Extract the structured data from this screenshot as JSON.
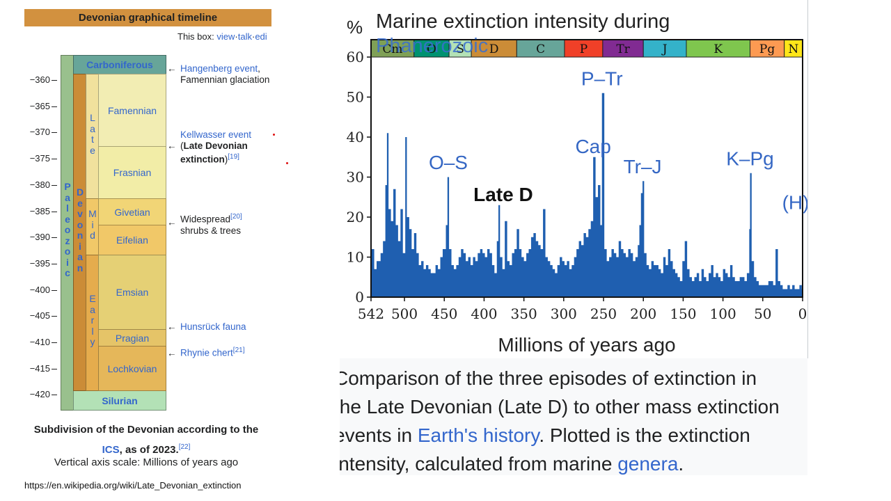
{
  "timeline": {
    "header": "Devonian graphical timeline",
    "box_prefix": "This box:",
    "box_links": [
      "view",
      "talk",
      "edi"
    ],
    "ticks": [
      "−360",
      "−365",
      "−370",
      "−375",
      "−380",
      "−385",
      "−390",
      "−395",
      "−400",
      "−405",
      "−410",
      "−415",
      "−420"
    ],
    "top_period": "Carboniferous",
    "bottom_period": "Silurian",
    "era_letters": [
      "P",
      "a",
      "l",
      "e",
      "o",
      "z",
      "o",
      "i",
      "c"
    ],
    "period_letters": [
      "D",
      "e",
      "v",
      "o",
      "n",
      "i",
      "a",
      "n"
    ],
    "epoch_late_letters": [
      "L",
      "a",
      "t",
      "e"
    ],
    "epoch_mid_letters": [
      "M",
      "i",
      "d"
    ],
    "epoch_early_letters": [
      "E",
      "a",
      "r",
      "l",
      "y"
    ],
    "stages": [
      "Famennian",
      "Frasnian",
      "Givetian",
      "Eifelian",
      "Emsian",
      "Pragian",
      "Lochkovian"
    ],
    "events": {
      "hangenberg_link": "Hangenberg event",
      "hangenberg_comma": ",",
      "hangenberg_line2": "Famennian glaciation",
      "kellwasser_link": "Kellwasser event",
      "kellwasser_open": "(",
      "kellwasser_bold1": "Late Devonian",
      "kellwasser_bold2": "extinction",
      "kellwasser_close": ")",
      "kellwasser_ref": "[19]",
      "shrubs_line1": "Widespread",
      "shrubs_ref": "[20]",
      "shrubs_line2": "shrubs & trees",
      "hunsruck": "Hunsrück fauna",
      "rhynie": "Rhynie chert",
      "rhynie_ref": "[21]",
      "arrow": "←"
    },
    "caption_line1": "Subdivision of the Devonian according to the",
    "caption_ics": "ICS",
    "caption_rest": ", as of 2023.",
    "caption_ref": "[22]",
    "axis_note": "Vertical axis scale: Millions of years ago"
  },
  "source_url": "https://en.wikipedia.org/wiki/Late_Devonian_extinction",
  "caption_panel": {
    "line1": "Comparison of the three episodes of extinction in",
    "line2": "the Late Devonian (Late D) to other mass extinction",
    "line3_pre": "events in ",
    "line3_link": "Earth's history",
    "line3_post": ". Plotted is the extinction",
    "line4_pre": "intensity, calculated from marine ",
    "line4_link": "genera",
    "line4_post": "."
  },
  "chart_data": {
    "type": "area",
    "title": "Marine extinction intensity during Phanerozoic",
    "title_line1": "Marine extinction intensity during",
    "title_line2": "Phanerozoic",
    "ylabel": "%",
    "xlabel": "Millions of years ago",
    "xlim": [
      542,
      0
    ],
    "ylim": [
      0,
      60
    ],
    "x_ticks": [
      542,
      500,
      450,
      400,
      350,
      300,
      250,
      200,
      150,
      100,
      50,
      0
    ],
    "y_ticks": [
      0,
      10,
      20,
      30,
      40,
      50,
      60
    ],
    "fill_color": "#1f5fb0",
    "periods": [
      {
        "label": "Cm",
        "start": 542,
        "end": 488,
        "color": "#7fa056"
      },
      {
        "label": "O",
        "start": 488,
        "end": 444,
        "color": "#009270"
      },
      {
        "label": "S",
        "start": 444,
        "end": 416,
        "color": "#b3e1b6"
      },
      {
        "label": "D",
        "start": 416,
        "end": 359,
        "color": "#cb8c37"
      },
      {
        "label": "C",
        "start": 359,
        "end": 299,
        "color": "#67a599"
      },
      {
        "label": "P",
        "start": 299,
        "end": 251,
        "color": "#f04028"
      },
      {
        "label": "Tr",
        "start": 251,
        "end": 200,
        "color": "#812b92"
      },
      {
        "label": "J",
        "start": 200,
        "end": 146,
        "color": "#34b2c9"
      },
      {
        "label": "K",
        "start": 146,
        "end": 66,
        "color": "#7fc64e"
      },
      {
        "label": "Pg",
        "start": 66,
        "end": 23,
        "color": "#fd9a52"
      },
      {
        "label": "N",
        "start": 23,
        "end": 0,
        "color": "#ffe619"
      }
    ],
    "annotations": [
      {
        "text": "O–S",
        "x": 445,
        "y": 32
      },
      {
        "text": "Late D",
        "x": 376,
        "y": 24
      },
      {
        "text": "Cap",
        "x": 263,
        "y": 36
      },
      {
        "text": "P–Tr",
        "x": 252,
        "y": 53
      },
      {
        "text": "Tr–J",
        "x": 201,
        "y": 31
      },
      {
        "text": "K–Pg",
        "x": 66,
        "y": 33
      },
      {
        "text": "(H)",
        "x": 0,
        "y": 22
      }
    ],
    "series": [
      {
        "values": [
          [
            542,
            12
          ],
          [
            538,
            7
          ],
          [
            535,
            9
          ],
          [
            530,
            11
          ],
          [
            527,
            14
          ],
          [
            524,
            28
          ],
          [
            522,
            41
          ],
          [
            520,
            22
          ],
          [
            517,
            19
          ],
          [
            514,
            27
          ],
          [
            511,
            18
          ],
          [
            508,
            14
          ],
          [
            505,
            22
          ],
          [
            502,
            11
          ],
          [
            499,
            40
          ],
          [
            497,
            20
          ],
          [
            494,
            17
          ],
          [
            491,
            12
          ],
          [
            488,
            16
          ],
          [
            485,
            11
          ],
          [
            482,
            8
          ],
          [
            479,
            9
          ],
          [
            476,
            7
          ],
          [
            473,
            8
          ],
          [
            470,
            7
          ],
          [
            467,
            6
          ],
          [
            464,
            6
          ],
          [
            461,
            8
          ],
          [
            458,
            7
          ],
          [
            455,
            10
          ],
          [
            452,
            12
          ],
          [
            448,
            18
          ],
          [
            446,
            30
          ],
          [
            444,
            12
          ],
          [
            441,
            8
          ],
          [
            438,
            7
          ],
          [
            435,
            8
          ],
          [
            432,
            10
          ],
          [
            429,
            12
          ],
          [
            426,
            11
          ],
          [
            423,
            9
          ],
          [
            420,
            10
          ],
          [
            417,
            8
          ],
          [
            414,
            10
          ],
          [
            411,
            9
          ],
          [
            408,
            11
          ],
          [
            405,
            12
          ],
          [
            402,
            11
          ],
          [
            399,
            10
          ],
          [
            396,
            12
          ],
          [
            393,
            11
          ],
          [
            390,
            8
          ],
          [
            387,
            6
          ],
          [
            384,
            14
          ],
          [
            382,
            23
          ],
          [
            380,
            10
          ],
          [
            377,
            7
          ],
          [
            374,
            19
          ],
          [
            371,
            9
          ],
          [
            368,
            8
          ],
          [
            365,
            11
          ],
          [
            362,
            12
          ],
          [
            359,
            17
          ],
          [
            356,
            12
          ],
          [
            353,
            10
          ],
          [
            350,
            9
          ],
          [
            347,
            11
          ],
          [
            344,
            12
          ],
          [
            341,
            15
          ],
          [
            338,
            16
          ],
          [
            335,
            14
          ],
          [
            332,
            13
          ],
          [
            329,
            12
          ],
          [
            326,
            22
          ],
          [
            323,
            10
          ],
          [
            320,
            9
          ],
          [
            317,
            8
          ],
          [
            314,
            7
          ],
          [
            311,
            6
          ],
          [
            308,
            8
          ],
          [
            305,
            10
          ],
          [
            302,
            9
          ],
          [
            299,
            8
          ],
          [
            296,
            9
          ],
          [
            293,
            7
          ],
          [
            290,
            8
          ],
          [
            287,
            10
          ],
          [
            284,
            12
          ],
          [
            281,
            14
          ],
          [
            278,
            13
          ],
          [
            275,
            16
          ],
          [
            272,
            15
          ],
          [
            269,
            17
          ],
          [
            266,
            19
          ],
          [
            263,
            35
          ],
          [
            260,
            25
          ],
          [
            257,
            28
          ],
          [
            254,
            18
          ],
          [
            252,
            51
          ],
          [
            249,
            12
          ],
          [
            246,
            9
          ],
          [
            243,
            10
          ],
          [
            240,
            12
          ],
          [
            237,
            11
          ],
          [
            234,
            10
          ],
          [
            231,
            14
          ],
          [
            228,
            12
          ],
          [
            225,
            11
          ],
          [
            222,
            10
          ],
          [
            219,
            12
          ],
          [
            216,
            11
          ],
          [
            213,
            9
          ],
          [
            210,
            10
          ],
          [
            207,
            13
          ],
          [
            205,
            18
          ],
          [
            203,
            26
          ],
          [
            201,
            29
          ],
          [
            199,
            11
          ],
          [
            196,
            8
          ],
          [
            193,
            7
          ],
          [
            190,
            9
          ],
          [
            187,
            8
          ],
          [
            184,
            8
          ],
          [
            181,
            7
          ],
          [
            178,
            6
          ],
          [
            175,
            10
          ],
          [
            172,
            8
          ],
          [
            169,
            12
          ],
          [
            166,
            9
          ],
          [
            163,
            7
          ],
          [
            160,
            6
          ],
          [
            157,
            5
          ],
          [
            154,
            4
          ],
          [
            151,
            9
          ],
          [
            148,
            14
          ],
          [
            145,
            7
          ],
          [
            142,
            5
          ],
          [
            139,
            4
          ],
          [
            136,
            5
          ],
          [
            133,
            6
          ],
          [
            130,
            4
          ],
          [
            127,
            7
          ],
          [
            124,
            5
          ],
          [
            121,
            4
          ],
          [
            118,
            6
          ],
          [
            115,
            8
          ],
          [
            112,
            5
          ],
          [
            109,
            6
          ],
          [
            106,
            5
          ],
          [
            103,
            4
          ],
          [
            100,
            7
          ],
          [
            97,
            6
          ],
          [
            94,
            5
          ],
          [
            91,
            8
          ],
          [
            88,
            5
          ],
          [
            85,
            4
          ],
          [
            82,
            4
          ],
          [
            79,
            5
          ],
          [
            76,
            5
          ],
          [
            73,
            4
          ],
          [
            70,
            6
          ],
          [
            67,
            17
          ],
          [
            66,
            31
          ],
          [
            64,
            9
          ],
          [
            61,
            5
          ],
          [
            58,
            4
          ],
          [
            55,
            3
          ],
          [
            52,
            3
          ],
          [
            49,
            3
          ],
          [
            46,
            3
          ],
          [
            43,
            4
          ],
          [
            40,
            4
          ],
          [
            37,
            3
          ],
          [
            34,
            12
          ],
          [
            31,
            4
          ],
          [
            28,
            3
          ],
          [
            25,
            2
          ],
          [
            22,
            2
          ],
          [
            19,
            3
          ],
          [
            16,
            2
          ],
          [
            13,
            3
          ],
          [
            10,
            2
          ],
          [
            7,
            2
          ],
          [
            4,
            3
          ],
          [
            1,
            2
          ],
          [
            0,
            3
          ]
        ]
      }
    ]
  }
}
